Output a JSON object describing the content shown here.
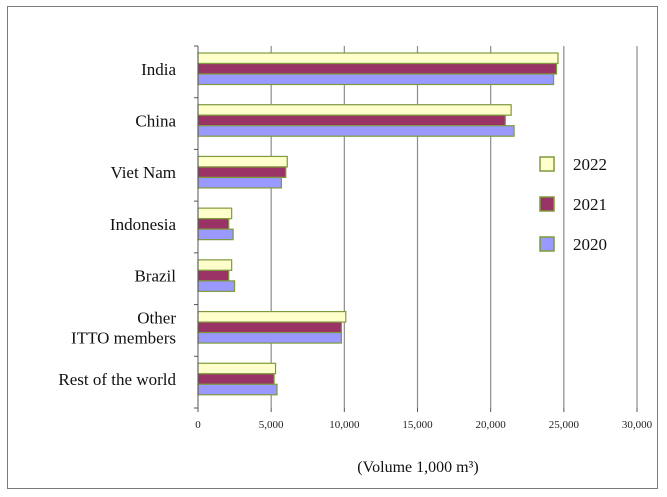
{
  "chart_data": {
    "type": "bar",
    "orientation": "horizontal",
    "categories": [
      [
        "India"
      ],
      [
        "China"
      ],
      [
        "Viet Nam"
      ],
      [
        "Indonesia"
      ],
      [
        "Brazil"
      ],
      [
        "Other",
        "ITTO members"
      ],
      [
        "Rest of the world"
      ]
    ],
    "series": [
      {
        "name": "2022",
        "color": "#ffffcc",
        "stroke": "#7f9a3c",
        "values": [
          24600,
          21400,
          6100,
          2300,
          2300,
          10100,
          5300
        ]
      },
      {
        "name": "2021",
        "color": "#993366",
        "stroke": "#7f9a3c",
        "values": [
          24500,
          21000,
          6000,
          2100,
          2100,
          9800,
          5200
        ]
      },
      {
        "name": "2020",
        "color": "#9999ff",
        "stroke": "#7f9a3c",
        "values": [
          24300,
          21600,
          5700,
          2400,
          2500,
          9800,
          5400
        ]
      }
    ],
    "x_ticks": [
      "0",
      "5,000",
      "10,000",
      "15,000",
      "20,000",
      "25,000",
      "30,000"
    ],
    "xlim": [
      0,
      30000
    ],
    "xlabel": "(Volume 1,000 m³)",
    "grid": "vertical",
    "legend_position": "right",
    "legend_order": [
      "2022",
      "2021",
      "2020"
    ]
  }
}
